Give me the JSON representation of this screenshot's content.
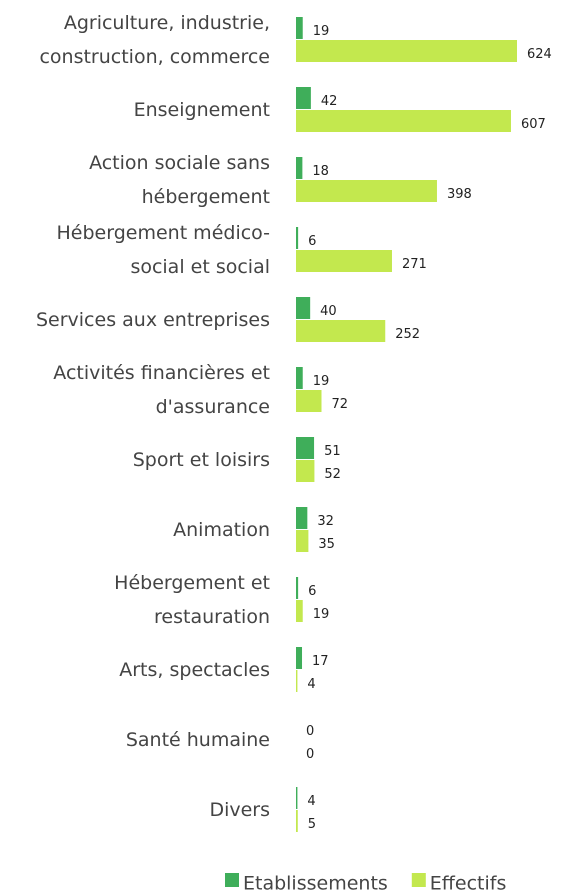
{
  "chart_data": {
    "type": "bar",
    "orientation": "horizontal",
    "categories": [
      "Agriculture, industrie,\nconstruction, commerce",
      "Enseignement",
      "Action sociale sans\nhébergement",
      "Hébergement médico-\nsocial et social",
      "Services aux entreprises",
      "Activités financières et\nd'assurance",
      "Sport et loisirs",
      "Animation",
      "Hébergement et\nrestauration",
      "Arts, spectacles",
      "Santé humaine",
      "Divers"
    ],
    "series": [
      {
        "name": "Etablissements",
        "color": "#3fae5a",
        "values": [
          19,
          42,
          18,
          6,
          40,
          19,
          51,
          32,
          6,
          17,
          0,
          4
        ]
      },
      {
        "name": "Effectifs",
        "color": "#c3e84e",
        "values": [
          624,
          607,
          398,
          271,
          252,
          72,
          52,
          35,
          19,
          4,
          0,
          5
        ]
      }
    ],
    "legend": "bottom"
  }
}
